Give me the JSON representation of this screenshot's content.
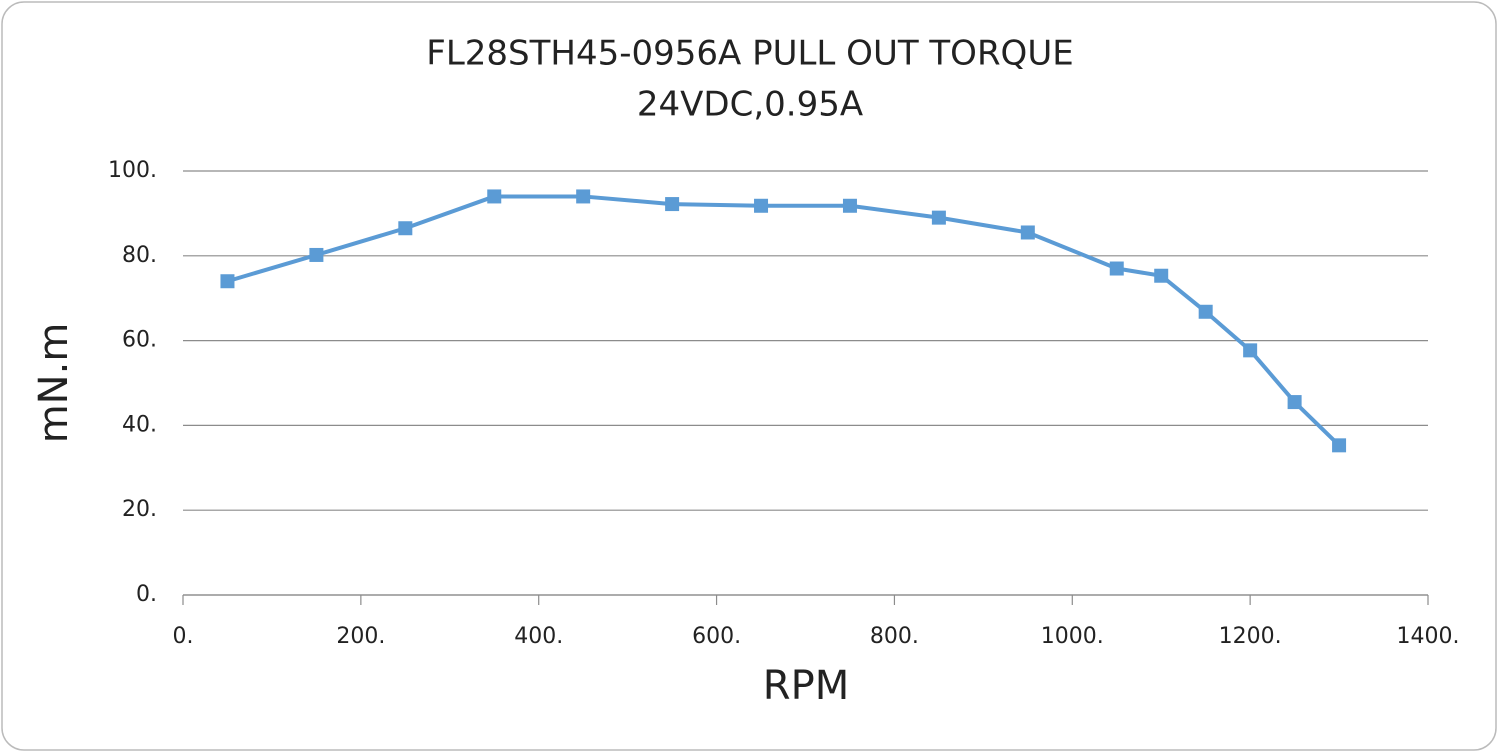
{
  "chart_data": {
    "type": "line",
    "title": "FL28STH45-0956A PULL OUT TORQUE",
    "subtitle": "24VDC,0.95A",
    "x_label": "RPM",
    "y_label": "mN.m",
    "x": [
      50,
      150,
      250,
      350,
      450,
      550,
      650,
      750,
      850,
      950,
      1050,
      1100,
      1150,
      1200,
      1250,
      1300
    ],
    "series": [
      {
        "name": "Pull out torque",
        "color": "#5b9bd5",
        "values": [
          74,
          80.2,
          86.5,
          94,
          94,
          92.2,
          91.8,
          91.8,
          89,
          85.5,
          77,
          75.3,
          66.8,
          57.7,
          45.5,
          35.3
        ]
      }
    ],
    "xlim": [
      0,
      1400
    ],
    "xticks": [
      {
        "value": 0,
        "label": "0."
      },
      {
        "value": 200,
        "label": "200."
      },
      {
        "value": 400,
        "label": "400."
      },
      {
        "value": 600,
        "label": "600."
      },
      {
        "value": 800,
        "label": "800."
      },
      {
        "value": 1000,
        "label": "1000."
      },
      {
        "value": 1200,
        "label": "1200."
      },
      {
        "value": 1400,
        "label": "1400."
      }
    ],
    "ylim": [
      0,
      100
    ],
    "yticks": [
      {
        "value": 0,
        "label": "0."
      },
      {
        "value": 20,
        "label": "20."
      },
      {
        "value": 40,
        "label": "40."
      },
      {
        "value": 60,
        "label": "60."
      },
      {
        "value": 80,
        "label": "80."
      },
      {
        "value": 100,
        "label": "100."
      }
    ],
    "grid": true
  }
}
